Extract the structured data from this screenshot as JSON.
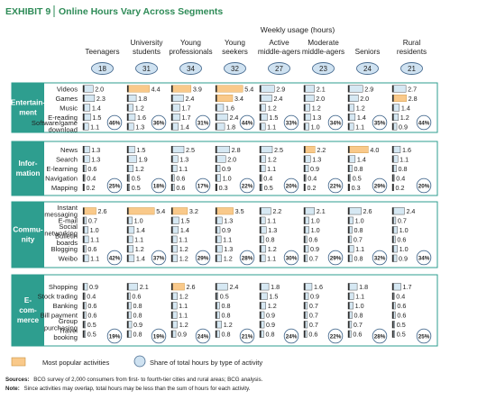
{
  "exhibit": {
    "label": "EXHIBIT 9",
    "title": "Online Hours Vary Across Segments"
  },
  "header": "Weekly usage (hours)",
  "segments": [
    {
      "name": "Teenagers",
      "total": "18"
    },
    {
      "name": "University students",
      "total": "31"
    },
    {
      "name": "Young professionals",
      "total": "34"
    },
    {
      "name": "Young seekers",
      "total": "32"
    },
    {
      "name": "Active middle-agers",
      "total": "27"
    },
    {
      "name": "Moderate middle-agers",
      "total": "23"
    },
    {
      "name": "Seniors",
      "total": "24"
    },
    {
      "name": "Rural residents",
      "total": "21"
    }
  ],
  "colors": {
    "accent": "#f9c98a",
    "bar": "#d6e8f3",
    "label_bg": "#2e9e8f",
    "group_border": "#2e9e8f",
    "circle_fill": "#cfe2f1",
    "circle_stroke": "#4a6d91"
  },
  "chart_data": {
    "type": "bar",
    "title": "Online Hours Vary Across Segments",
    "ylabel": "Weekly usage (hours)",
    "series": [
      "Teenagers",
      "University students",
      "Young professionals",
      "Young seekers",
      "Active middle-agers",
      "Moderate middle-agers",
      "Seniors",
      "Rural residents"
    ],
    "groups": [
      {
        "name": "Entertain-ment",
        "shares": [
          "46%",
          "36%",
          "31%",
          "44%",
          "33%",
          "34%",
          "35%",
          "44%"
        ],
        "activities": [
          {
            "name": "Videos",
            "values": [
              2.0,
              4.4,
              3.9,
              5.4,
              2.9,
              2.1,
              2.9,
              2.7
            ],
            "highlight": [
              false,
              true,
              true,
              true,
              false,
              false,
              false,
              false
            ]
          },
          {
            "name": "Games",
            "values": [
              2.3,
              1.8,
              2.4,
              3.4,
              2.4,
              2.0,
              2.0,
              2.8
            ],
            "highlight": [
              false,
              false,
              false,
              true,
              false,
              false,
              false,
              true
            ]
          },
          {
            "name": "Music",
            "values": [
              1.4,
              1.2,
              1.7,
              1.6,
              1.2,
              1.2,
              1.2,
              1.4
            ]
          },
          {
            "name": "E-reading",
            "values": [
              1.5,
              1.6,
              1.7,
              2.4,
              1.5,
              1.3,
              1.4,
              1.2
            ]
          },
          {
            "name": "Software/game download",
            "values": [
              1.1,
              1.3,
              1.4,
              1.8,
              1.1,
              1.0,
              1.1,
              0.9
            ]
          }
        ]
      },
      {
        "name": "Infor-mation",
        "shares": [
          "25%",
          "18%",
          "17%",
          "22%",
          "20%",
          "22%",
          "29%",
          "20%"
        ],
        "activities": [
          {
            "name": "News",
            "values": [
              1.3,
              1.5,
              2.5,
              2.8,
              2.5,
              2.2,
              4.0,
              1.6
            ],
            "highlight": [
              false,
              false,
              false,
              false,
              false,
              true,
              true,
              false
            ]
          },
          {
            "name": "Search",
            "values": [
              1.3,
              1.9,
              1.3,
              2.0,
              1.2,
              1.3,
              1.4,
              1.1
            ]
          },
          {
            "name": "E-learning",
            "values": [
              0.6,
              1.2,
              1.1,
              0.9,
              1.1,
              0.9,
              0.8,
              0.8
            ]
          },
          {
            "name": "Navigation",
            "values": [
              0.4,
              0.5,
              0.6,
              1.0,
              0.4,
              0.4,
              0.5,
              0.4
            ]
          },
          {
            "name": "Mapping",
            "values": [
              0.2,
              0.5,
              0.6,
              0.3,
              0.5,
              0.2,
              0.3,
              0.2
            ]
          }
        ]
      },
      {
        "name": "Commu-nity",
        "shares": [
          "42%",
          "37%",
          "29%",
          "28%",
          "30%",
          "29%",
          "32%",
          "34%"
        ],
        "activities": [
          {
            "name": "Instant messaging",
            "values": [
              2.6,
              5.4,
              3.2,
              3.5,
              2.2,
              2.1,
              2.6,
              2.4
            ],
            "highlight": [
              true,
              true,
              true,
              true,
              false,
              false,
              false,
              false
            ]
          },
          {
            "name": "E-mail",
            "values": [
              0.7,
              1.0,
              1.5,
              1.3,
              1.1,
              1.0,
              1.0,
              0.7
            ]
          },
          {
            "name": "Social networking",
            "values": [
              1.0,
              1.4,
              1.4,
              0.9,
              1.3,
              1.0,
              0.8,
              1.0
            ]
          },
          {
            "name": "Bulletin boards",
            "values": [
              1.1,
              1.1,
              1.1,
              1.1,
              0.8,
              0.6,
              0.7,
              0.6
            ]
          },
          {
            "name": "Blogging",
            "values": [
              0.6,
              1.2,
              1.2,
              1.3,
              1.2,
              0.9,
              1.1,
              1.0
            ]
          },
          {
            "name": "Weibo",
            "values": [
              1.1,
              1.4,
              1.2,
              1.2,
              1.1,
              0.7,
              0.8,
              0.9
            ]
          }
        ]
      },
      {
        "name": "E-com-merce",
        "shares": [
          "19%",
          "19%",
          "24%",
          "21%",
          "24%",
          "22%",
          "28%",
          "25%"
        ],
        "activities": [
          {
            "name": "Shopping",
            "values": [
              0.9,
              2.1,
              2.6,
              2.4,
              1.8,
              1.6,
              1.8,
              1.7
            ],
            "highlight": [
              false,
              false,
              true,
              false,
              false,
              false,
              false,
              false
            ]
          },
          {
            "name": "Stock trading",
            "values": [
              0.4,
              0.6,
              1.2,
              0.5,
              1.5,
              0.9,
              1.1,
              0.4
            ]
          },
          {
            "name": "Banking",
            "values": [
              0.6,
              0.8,
              1.1,
              0.8,
              1.2,
              0.7,
              1.0,
              0.6
            ]
          },
          {
            "name": "Bill payment",
            "values": [
              0.6,
              0.8,
              1.1,
              0.8,
              0.9,
              0.7,
              0.8,
              0.6
            ]
          },
          {
            "name": "Group purchasing",
            "values": [
              0.5,
              0.9,
              1.2,
              1.2,
              0.9,
              0.7,
              0.7,
              0.5
            ]
          },
          {
            "name": "Travel booking",
            "values": [
              0.5,
              0.8,
              0.9,
              0.8,
              0.8,
              0.6,
              0.6,
              0.5
            ]
          }
        ]
      }
    ]
  },
  "legend": {
    "popular": "Most popular activities",
    "share": "Share of total hours by type of activity"
  },
  "footnotes": {
    "sources_label": "Sources:",
    "sources": "BCG survey of 2,000 consumers from first- to fourth-tier cities and rural areas; BCG analysis.",
    "note_label": "Note:",
    "note": "Since activities may overlap, total hours may be less than the sum of hours for each activity."
  }
}
